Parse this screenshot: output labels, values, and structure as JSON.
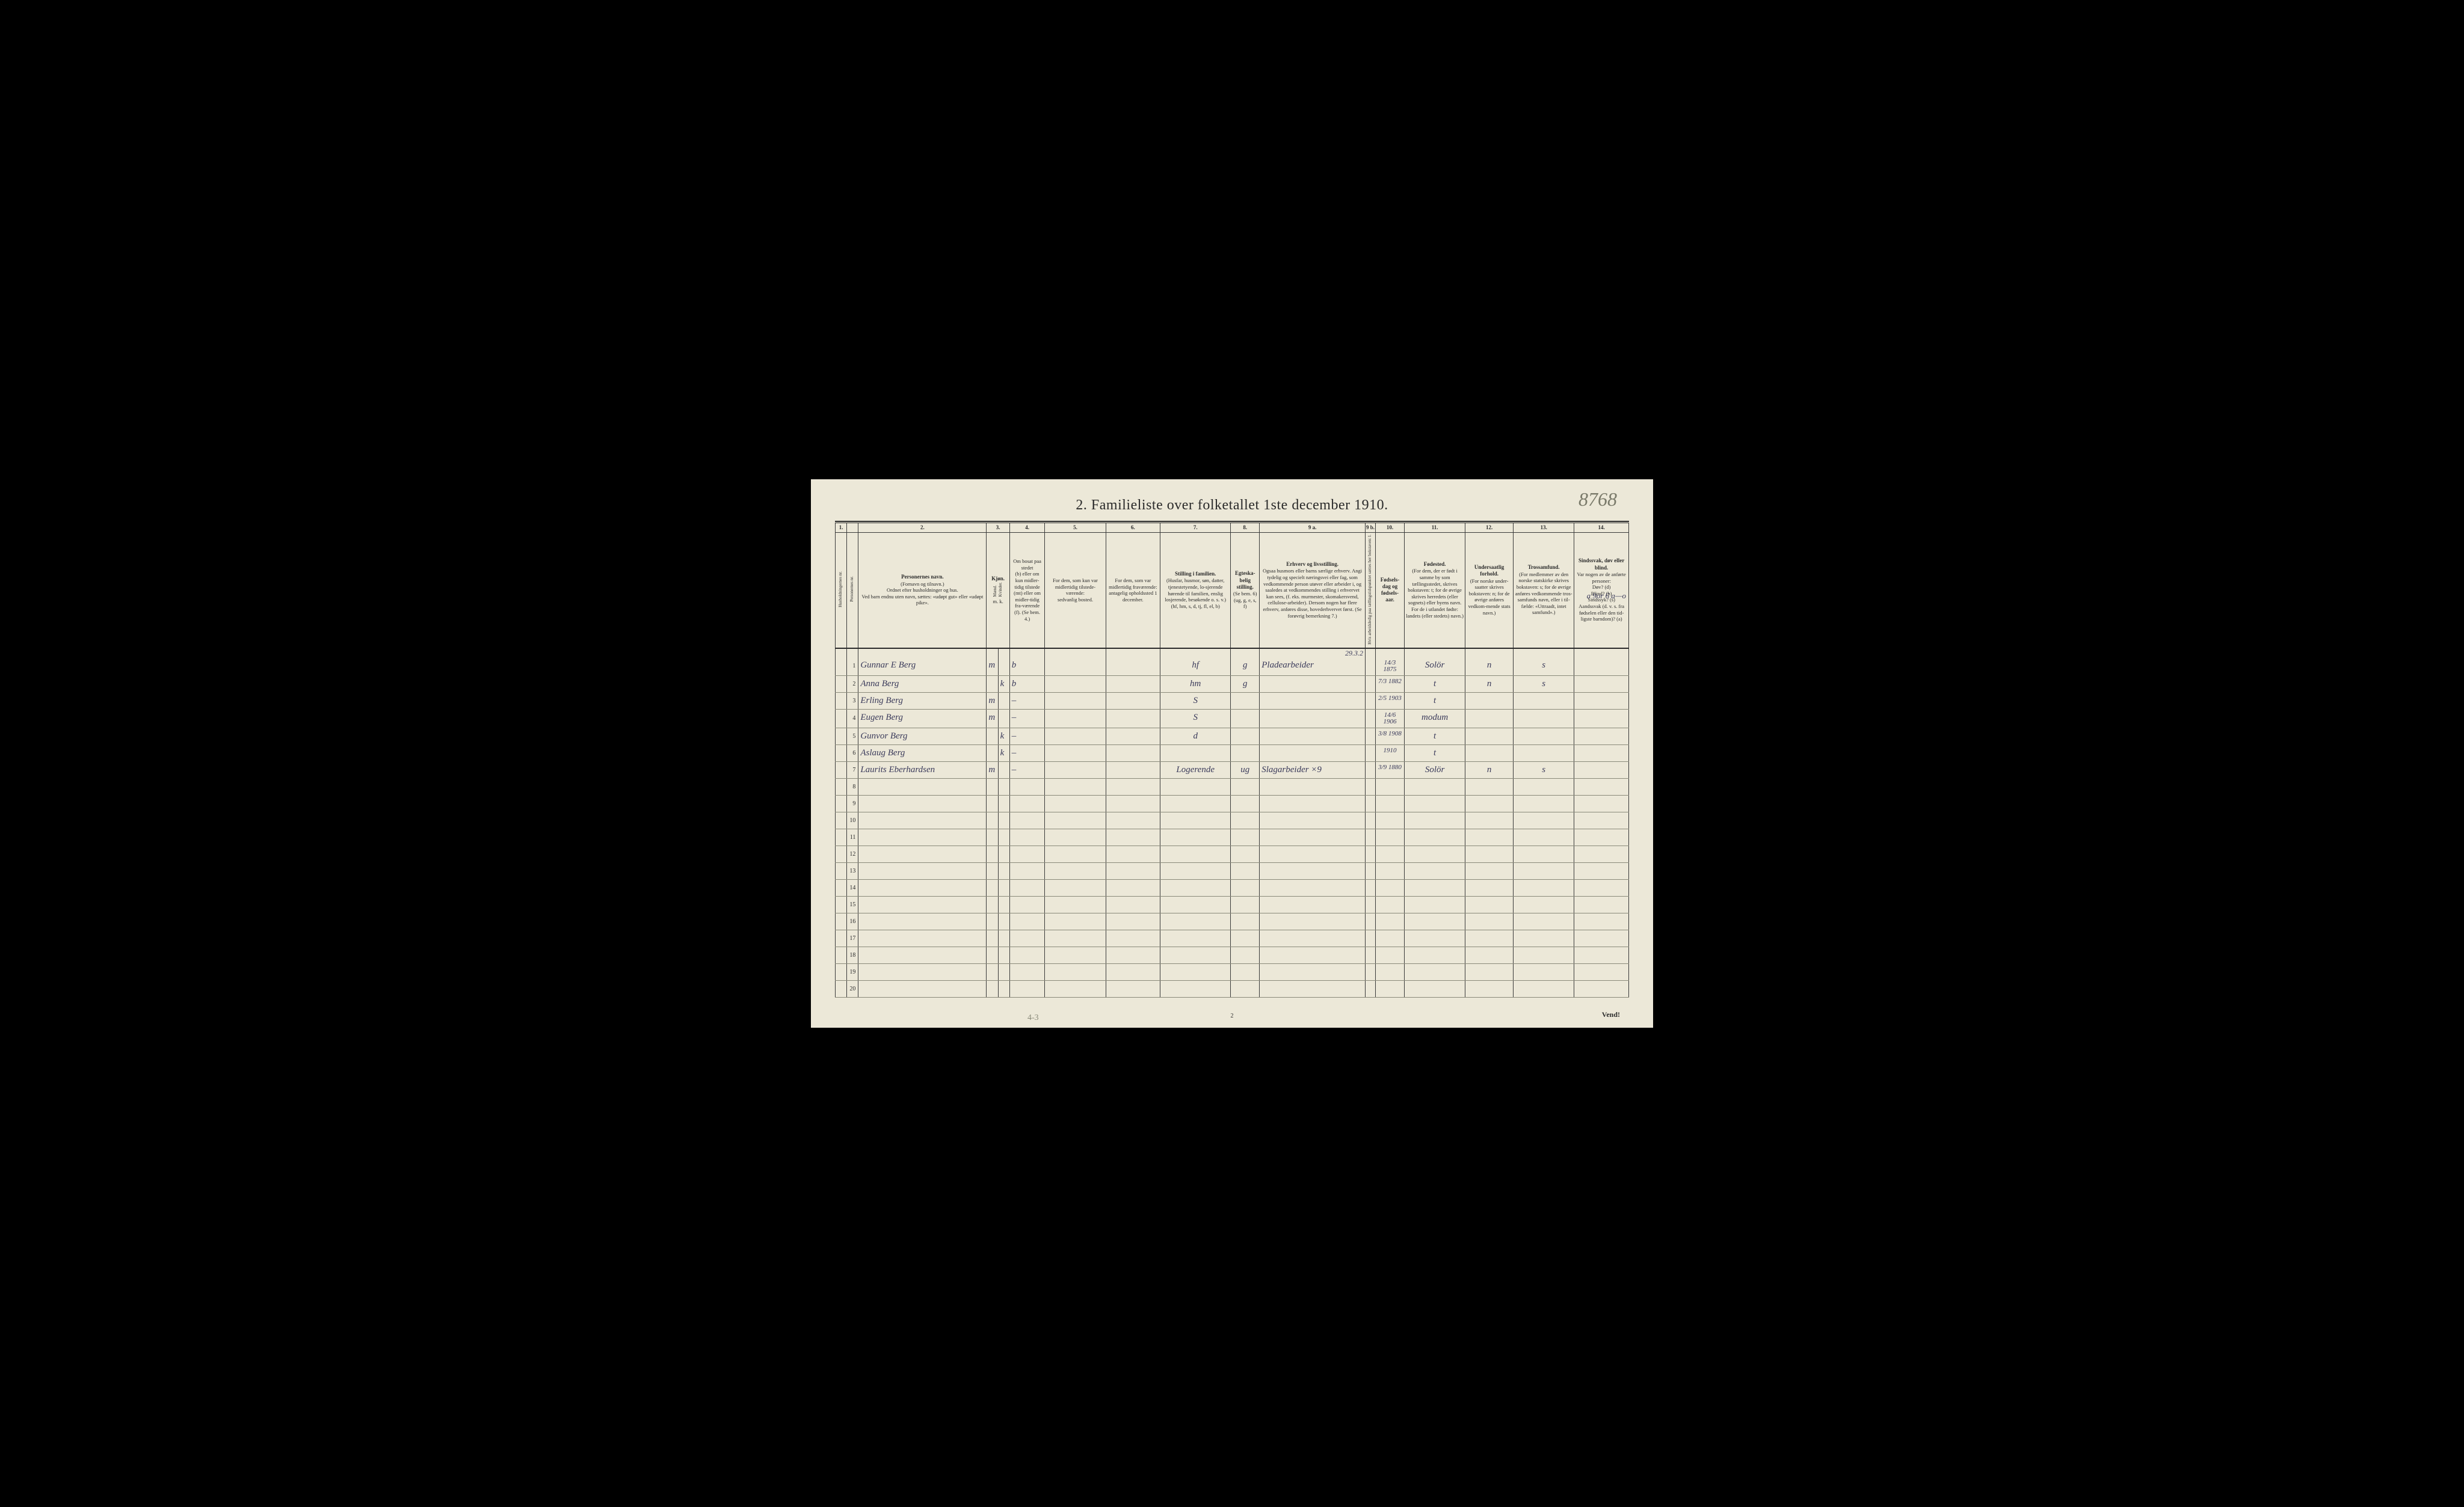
{
  "corner_annotation": "8768",
  "title": "2.   Familieliste over folketallet 1ste december 1910.",
  "col_numbers": [
    "1.",
    "",
    "2.",
    "3.",
    "",
    "4.",
    "5.",
    "6.",
    "7.",
    "8.",
    "9 a.",
    "9 b.",
    "10.",
    "11.",
    "12.",
    "13.",
    "14."
  ],
  "headers": {
    "c1": "Husholdningernes nr.",
    "c2": "Personernes nr.",
    "c3_title": "Personernes navn.",
    "c3_sub": "(Fornavn og tilnavn.)\nOrdnet efter husholdninger og hus.\nVed barn endnu uten navn, sættes: «udøpt gut» eller «udøpt pike».",
    "c4_title": "Kjøn.",
    "c4_sub": "Mænd.   Kvinder.",
    "c4_foot": "m.   k.",
    "c5_title": "Om bosat paa stedet",
    "c5_sub": "(b) eller om kun midler-tidig tilstede (mt) eller om midler-tidig fra-værende (f). (Se bem. 4.)",
    "c6_title": "For dem, som kun var midlertidig tilstede-værende:",
    "c6_sub": "sedvanlig bosted.",
    "c7_title": "For dem, som var midlertidig fraværende:",
    "c7_sub": "antagelig opholdssted 1 december.",
    "c8_title": "Stilling i familien.",
    "c8_sub": "(Husfar, husmor, søn, datter, tjenestetyende, lo-sjerende hørende til familien, enslig losjerende, besøkende o. s. v.)\n(hf, hm, s, d, tj, fl, el, b)",
    "c9_title": "Egteska-belig stilling.",
    "c9_sub": "(Se bem. 6)\n(ug, g, e, s, f)",
    "c10_title": "Erhverv og livsstilling.",
    "c10_sub": "Ogsaa husmors eller barns særlige erhverv. Angi tydelig og specielt næringsvei eller fag, som vedkommende person utøver eller arbeider i, og saaledes at vedkommendes stilling i erhvervet kan sees, (f. eks. murmester, skomakersvend, cellulose-arbeider). Dersom nogen har flere erhverv, anføres disse, hovederhvervet først. (Se forøvrig bemerkning 7.)",
    "c10b": "Hvis arbeidsledig paa tællingstidspunktet sættes her bokstaven: l.",
    "c11_title": "Fødsels-dag og fødsels-aar.",
    "c12_title": "Fødested.",
    "c12_sub": "(For dem, der er født i samme by som tællingsstedet, skrives bokstaven: t; for de øvrige skrives herredets (eller sognets) eller byens navn. For de i utlandet fødte: landets (eller stedets) navn.)",
    "c13_title": "Undersaatlig forhold.",
    "c13_sub": "(For norske under-saatter skrives bokstaven: n; for de øvrige anføres vedkom-mende stats navn.)",
    "c14_title": "Trossamfund.",
    "c14_sub": "(For medlemmer av den norske statskirke skrives bokstaven: s; for de øvrige anføres vedkommende tros-samfunds navn, eller i til-fælde: «Uttraadt, intet samfund».)",
    "c15_title": "Sindssvak, døv eller blind.",
    "c15_sub": "Var nogen av de anførte personer:\nDøv?           (d)\nBlind?          (b)\nSindssyk?    (s)\nAandssvak (d. v. s. fra fødselen eller den tid-ligste barndom)? (a)"
  },
  "top_annotation": "29.3.2",
  "margin_note": "a  9or  6\na—o",
  "rows": [
    {
      "n": "1",
      "name": "Gunnar E Berg",
      "kjm": "m",
      "kjk": "",
      "bosat": "b",
      "c6": "",
      "c7": "",
      "stilling": "hf",
      "egte": "g",
      "erhverv": "Pladearbeider",
      "dato": "14/3 1875",
      "fsted": "Solör",
      "under": "n",
      "tros": "s",
      "sind": ""
    },
    {
      "n": "2",
      "name": "Anna    Berg",
      "kjm": "",
      "kjk": "k",
      "bosat": "b",
      "c6": "",
      "c7": "",
      "stilling": "hm",
      "egte": "g",
      "erhverv": "",
      "dato": "7/3 1882",
      "fsted": "t",
      "under": "n",
      "tros": "s",
      "sind": ""
    },
    {
      "n": "3",
      "name": "Erling   Berg",
      "kjm": "m",
      "kjk": "",
      "bosat": "–",
      "c6": "",
      "c7": "",
      "stilling": "S",
      "egte": "",
      "erhverv": "",
      "dato": "2/5 1903",
      "fsted": "t",
      "under": "",
      "tros": "",
      "sind": ""
    },
    {
      "n": "4",
      "name": "Eugen   Berg",
      "kjm": "m",
      "kjk": "",
      "bosat": "–",
      "c6": "",
      "c7": "",
      "stilling": "S",
      "egte": "",
      "erhverv": "",
      "dato": "14/6 1906",
      "fsted": "modum",
      "under": "",
      "tros": "",
      "sind": ""
    },
    {
      "n": "5",
      "name": "Gunvor  Berg",
      "kjm": "",
      "kjk": "k",
      "bosat": "–",
      "c6": "",
      "c7": "",
      "stilling": "d",
      "egte": "",
      "erhverv": "",
      "dato": "3/8 1908",
      "fsted": "t",
      "under": "",
      "tros": "",
      "sind": ""
    },
    {
      "n": "6",
      "name": "Aslaug   Berg",
      "kjm": "",
      "kjk": "k",
      "bosat": "–",
      "c6": "",
      "c7": "",
      "stilling": "",
      "egte": "",
      "erhverv": "",
      "dato": "1910",
      "fsted": "t",
      "under": "",
      "tros": "",
      "sind": ""
    },
    {
      "n": "7",
      "name": "Laurits Eberhardsen",
      "kjm": "m",
      "kjk": "",
      "bosat": "–",
      "c6": "",
      "c7": "",
      "stilling": "Logerende",
      "egte": "ug",
      "erhverv": "Slagarbeider ×9",
      "dato": "3/9 1880",
      "fsted": "Solör",
      "under": "n",
      "tros": "s",
      "sind": ""
    }
  ],
  "empty_row_numbers": [
    "8",
    "9",
    "10",
    "11",
    "12",
    "13",
    "14",
    "15",
    "16",
    "17",
    "18",
    "19",
    "20"
  ],
  "footer_vend": "Vend!",
  "page_number": "2",
  "pencil": "4-3",
  "colors": {
    "paper": "#ece8d8",
    "ink": "#2a2a2a",
    "line": "#3a3a3a",
    "faint_line": "#8a8a7a",
    "handwriting": "#3a3a5a",
    "pencil": "#8a8a7a"
  }
}
